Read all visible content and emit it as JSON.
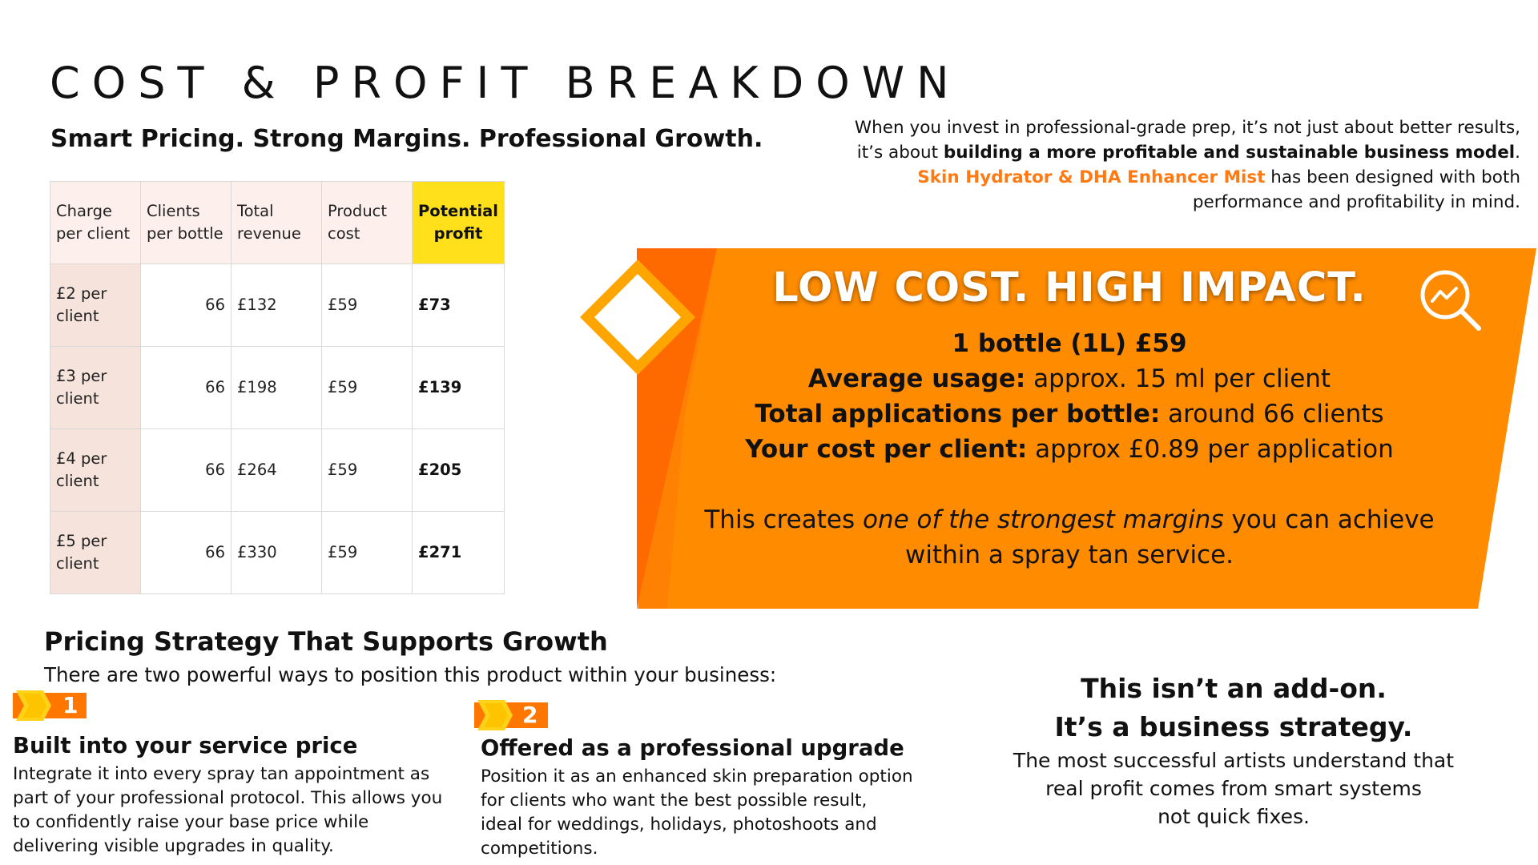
{
  "title": "COST & PROFIT BREAKDOWN",
  "subtitle": "Smart Pricing. Strong Margins. Professional Growth.",
  "intro": {
    "line1": "When you invest in professional-grade prep, it’s not just about better results,",
    "line2_pre": "it’s about ",
    "line2_bold": "building a more profitable and sustainable business model",
    "line2_post": ".",
    "line3_product": "Skin Hydrator & DHA Enhancer Mist",
    "line3_post": " has been designed with both",
    "line4": "performance and profitability in mind."
  },
  "table": {
    "headers": [
      "Charge per client",
      "Clients per bottle",
      "Total revenue",
      "Product cost",
      "Potential profit"
    ],
    "rows": [
      {
        "charge": "£2 per client",
        "clients": "66",
        "revenue": "£132",
        "cost": "£59",
        "profit": "£73"
      },
      {
        "charge": "£3 per client",
        "clients": "66",
        "revenue": "£198",
        "cost": "£59",
        "profit": "£139"
      },
      {
        "charge": "£4 per client",
        "clients": "66",
        "revenue": "£264",
        "cost": "£59",
        "profit": "£205"
      },
      {
        "charge": "£5 per client",
        "clients": "66",
        "revenue": "£330",
        "cost": "£59",
        "profit": "£271"
      }
    ]
  },
  "panel": {
    "heading": "LOW COST. HIGH IMPACT.",
    "bottle": "1 bottle (1L) £59",
    "usage_label": "Average usage:",
    "usage_value": " approx. 15 ml per client",
    "apps_label": "Total applications per bottle:",
    "apps_value": " around 66 clients",
    "cost_label": "Your cost per client:",
    "cost_value": " approx £0.89 per application",
    "margin_pre": "This creates ",
    "margin_em": "one of the strongest margins",
    "margin_post": " you can achieve",
    "margin_line2": "within a spray tan service."
  },
  "strategy": {
    "heading": "Pricing Strategy That Supports Growth",
    "intro": "There are two powerful ways to position this product within your business:",
    "options": [
      {
        "number": "1",
        "title": "Built into your service price",
        "body": "Integrate it into every spray tan appointment as part of your professional protocol. This allows you to confidently raise your base price while delivering visible upgrades in quality."
      },
      {
        "number": "2",
        "title": "Offered as a professional upgrade",
        "body": "Position it as an enhanced skin preparation option for clients who want the best possible result, ideal for weddings, holidays, photoshoots and competitions."
      }
    ]
  },
  "closing": {
    "line1": "This isn’t an add-on.",
    "line2": "It’s a business strategy.",
    "line3": "The most successful artists understand that",
    "line4": "real profit comes from smart systems",
    "line5": "not quick fixes."
  },
  "colors": {
    "orange": "#ff8c00",
    "orange_dark": "#ff6a00",
    "profit_header": "#ffe01a",
    "accent_text": "#ff7a12"
  }
}
